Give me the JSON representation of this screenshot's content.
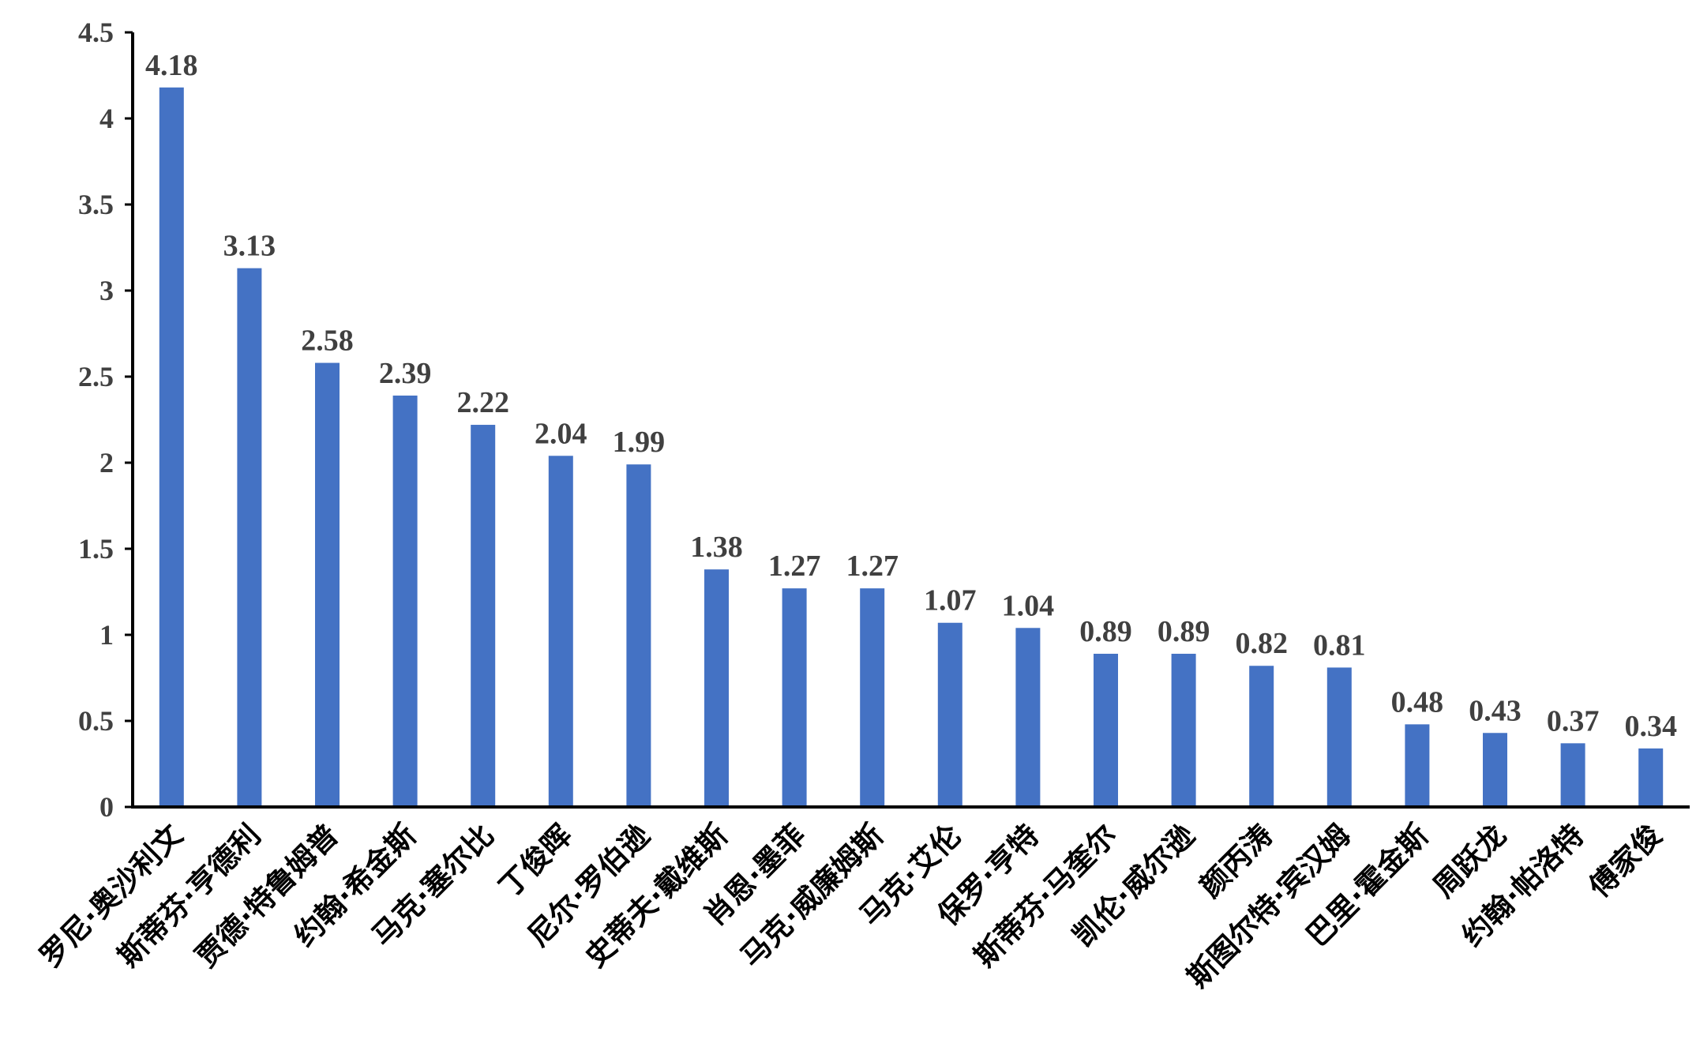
{
  "chart_data": {
    "type": "bar",
    "categories": [
      "罗尼·奥沙利文",
      "斯蒂芬·亨德利",
      "贾德·特鲁姆普",
      "约翰·希金斯",
      "马克·塞尔比",
      "丁俊晖",
      "尼尔·罗伯逊",
      "史蒂夫·戴维斯",
      "肖恩·墨菲",
      "马克·威廉姆斯",
      "马克·艾伦",
      "保罗·亨特",
      "斯蒂芬·马奎尔",
      "凯伦·威尔逊",
      "颜丙涛",
      "斯图尔特·宾汉姆",
      "巴里·霍金斯",
      "周跃龙",
      "约翰·帕洛特",
      "傅家俊"
    ],
    "values": [
      4.18,
      3.13,
      2.58,
      2.39,
      2.22,
      2.04,
      1.99,
      1.38,
      1.27,
      1.27,
      1.07,
      1.04,
      0.89,
      0.89,
      0.82,
      0.81,
      0.48,
      0.43,
      0.37,
      0.34
    ],
    "value_labels": [
      "4.18",
      "3.13",
      "2.58",
      "2.39",
      "2.22",
      "2.04",
      "1.99",
      "1.38",
      "1.27",
      "1.27",
      "1.07",
      "1.04",
      "0.89",
      "0.89",
      "0.82",
      "0.81",
      "0.48",
      "0.43",
      "0.37",
      "0.34"
    ],
    "yticks": [
      "0",
      "0.5",
      "1",
      "1.5",
      "2",
      "2.5",
      "3",
      "3.5",
      "4",
      "4.5"
    ],
    "ylim": [
      0,
      4.5
    ],
    "title": "",
    "xlabel": "",
    "ylabel": "",
    "grid": false,
    "legend": "none",
    "bar_color": "#4472C4"
  }
}
